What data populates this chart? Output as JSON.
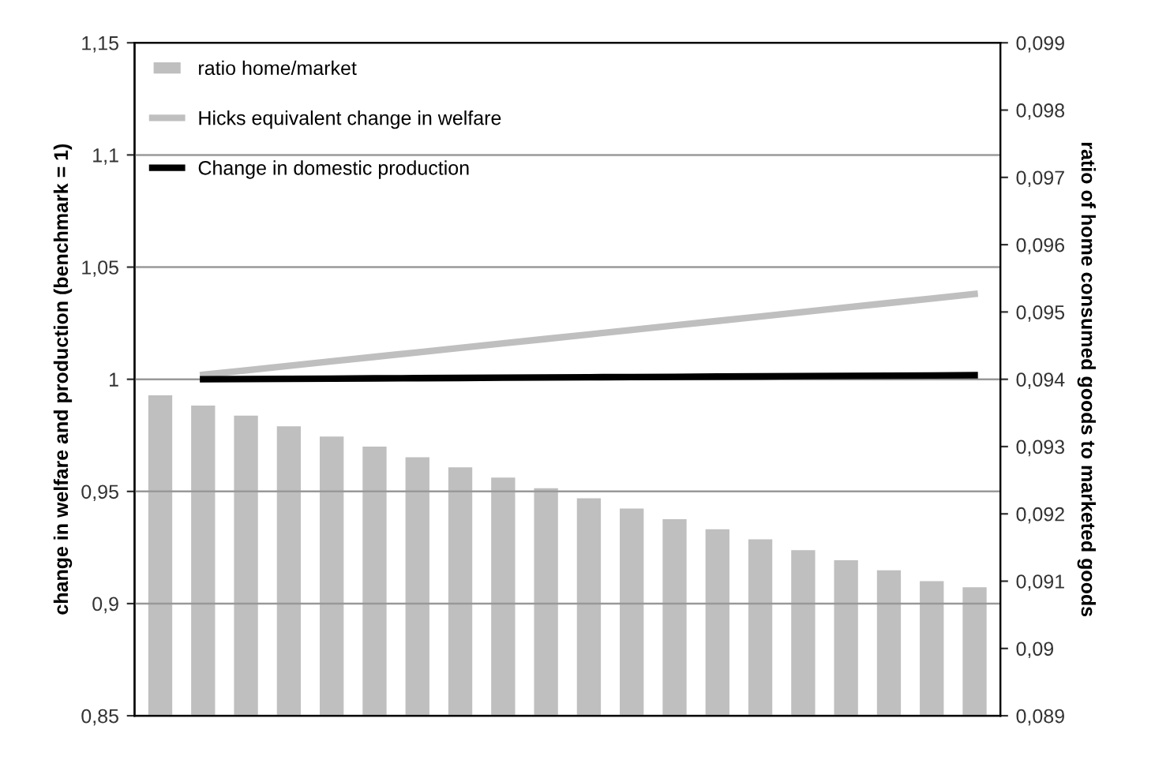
{
  "chart_data": {
    "type": "bar",
    "ylabel": "change in welfare and production (benchmark = 1)",
    "y2label": "ratio of home consumed goods to marketed goods",
    "categories": [
      null,
      null,
      null,
      null,
      null,
      null,
      null,
      null,
      null,
      null,
      null,
      null,
      null,
      null,
      null,
      null,
      null,
      null,
      null,
      null
    ],
    "series": [
      {
        "name": "ratio home/market",
        "axis": "y2",
        "color": "#bfbfbf",
        "values": [
          0.09378,
          0.09363,
          0.09348,
          0.09332,
          0.09317,
          0.09302,
          0.09286,
          0.09271,
          0.09256,
          0.0924,
          0.09225,
          0.0921,
          0.09194,
          0.09179,
          0.09164,
          0.09148,
          0.09133,
          0.09118,
          0.09102,
          0.09093
        ]
      },
      {
        "name": "Hicks equivalent change in welfare",
        "type": "line",
        "color": "#bfbfbf",
        "values": [
          null,
          1.002,
          1.004,
          1.006,
          1.008,
          1.01,
          1.012,
          1.014,
          1.016,
          1.018,
          1.02,
          1.022,
          1.024,
          1.026,
          1.028,
          1.03,
          1.032,
          1.034,
          1.036,
          1.038
        ]
      },
      {
        "name": "Change in domestic production",
        "type": "line",
        "color": "#000000",
        "values": [
          null,
          1.0,
          1.0001,
          1.0002,
          1.0003,
          1.0004,
          1.0005,
          1.0006,
          1.0007,
          1.0008,
          1.0009,
          1.001,
          1.0011,
          1.0012,
          1.0013,
          1.0014,
          1.0015,
          1.0016,
          1.0017,
          1.0018
        ]
      }
    ],
    "ylim": [
      0.85,
      1.15
    ],
    "yticks": [
      {
        "value": 0.85,
        "label": "0,85"
      },
      {
        "value": 0.9,
        "label": "0,9"
      },
      {
        "value": 0.95,
        "label": "0,95"
      },
      {
        "value": 1,
        "label": "1"
      },
      {
        "value": 1.05,
        "label": "1,05"
      },
      {
        "value": 1.1,
        "label": "1,1"
      },
      {
        "value": 1.15,
        "label": "1,15"
      }
    ],
    "y2lim": [
      0.089,
      0.099
    ],
    "y2ticks": [
      {
        "value": 0.089,
        "label": "0,089"
      },
      {
        "value": 0.09,
        "label": "0,09"
      },
      {
        "value": 0.091,
        "label": "0,091"
      },
      {
        "value": 0.092,
        "label": "0,092"
      },
      {
        "value": 0.093,
        "label": "0,093"
      },
      {
        "value": 0.094,
        "label": "0,094"
      },
      {
        "value": 0.095,
        "label": "0,095"
      },
      {
        "value": 0.096,
        "label": "0,096"
      },
      {
        "value": 0.097,
        "label": "0,097"
      },
      {
        "value": 0.098,
        "label": "0,098"
      },
      {
        "value": 0.099,
        "label": "0,099"
      }
    ],
    "grid": "y",
    "legend": "top left"
  }
}
